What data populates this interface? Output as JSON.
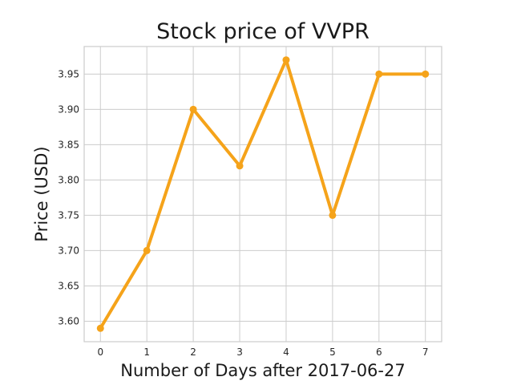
{
  "chart_data": {
    "type": "line",
    "title": "Stock price of VVPR",
    "xlabel": "Number of Days after 2017-06-27",
    "ylabel": "Price (USD)",
    "x": [
      0,
      1,
      2,
      3,
      4,
      5,
      6,
      7
    ],
    "x_ticks": [
      "0",
      "1",
      "2",
      "3",
      "4",
      "5",
      "6",
      "7"
    ],
    "y_ticks": [
      "3.60",
      "3.65",
      "3.70",
      "3.75",
      "3.80",
      "3.85",
      "3.90",
      "3.95"
    ],
    "y_tick_values": [
      3.6,
      3.65,
      3.7,
      3.75,
      3.8,
      3.85,
      3.9,
      3.95
    ],
    "xlim": [
      -0.35,
      7.35
    ],
    "ylim": [
      3.571,
      3.989
    ],
    "grid": true,
    "series": [
      {
        "values": [
          3.59,
          3.7,
          3.9,
          3.82,
          3.97,
          3.75,
          3.95,
          3.95
        ],
        "color": "#f5a31a",
        "marker": "circle"
      }
    ]
  }
}
